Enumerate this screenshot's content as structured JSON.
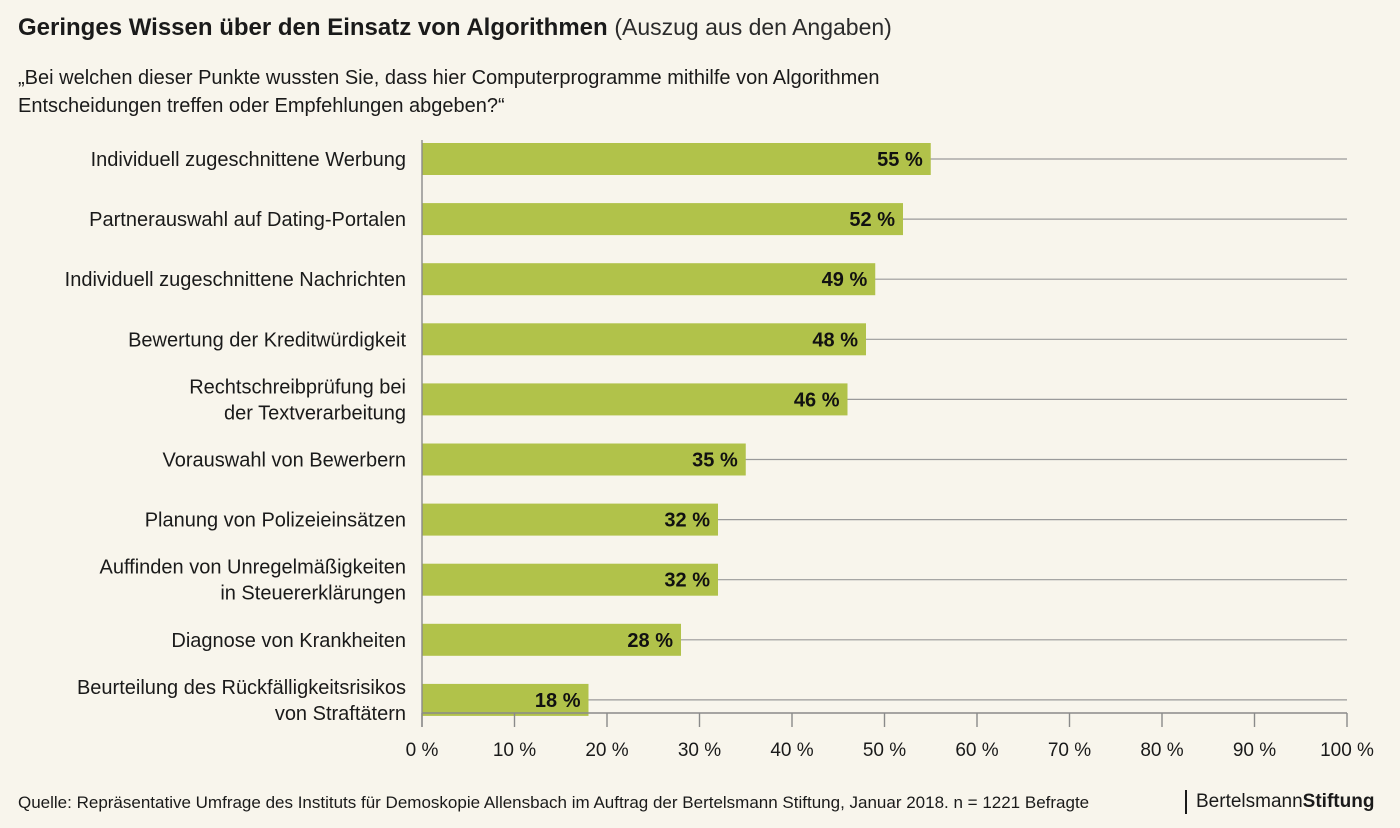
{
  "header": {
    "title": "Geringes Wissen über den Einsatz von Algorithmen",
    "subtitle": "(Auszug aus den Angaben)",
    "question": "„Bei welchen dieser Punkte wussten Sie, dass hier Computerprogramme mithilfe von Algorithmen\n Entscheidungen treffen oder Empfehlungen abgeben?“"
  },
  "chart_data": {
    "type": "bar",
    "orientation": "horizontal",
    "categories": [
      "Individuell zugeschnittene Werbung",
      "Partnerauswahl auf Dating-Portalen",
      "Individuell zugeschnittene Nachrichten",
      "Bewertung der Kreditwürdigkeit",
      "Rechtschreibprüfung bei\nder Textverarbeitung",
      "Vorauswahl von Bewerbern",
      "Planung von Polizeieinsätzen",
      "Auffinden von Unregelmäßigkeiten\nin Steuererklärungen",
      "Diagnose von Krankheiten",
      "Beurteilung des Rückfälligkeitsrisikos\nvon Straftätern"
    ],
    "values": [
      55,
      52,
      49,
      48,
      46,
      35,
      32,
      32,
      28,
      18
    ],
    "data_labels": [
      "55 %",
      "52 %",
      "49 %",
      "48 %",
      "46 %",
      "35 %",
      "32 %",
      "32 %",
      "28 %",
      "18 %"
    ],
    "xlim": [
      0,
      100
    ],
    "x_ticks": [
      0,
      10,
      20,
      30,
      40,
      50,
      60,
      70,
      80,
      90,
      100
    ],
    "x_tick_labels": [
      "0 %",
      "10 %",
      "20 %",
      "30 %",
      "40 %",
      "50 %",
      "60 %",
      "70 %",
      "80 %",
      "90 %",
      "100 %"
    ],
    "bar_color": "#b1c24a",
    "grid": "horizontal lines at each category"
  },
  "footer": {
    "source": "Quelle: Repräsentative Umfrage des Instituts für Demoskopie Allensbach im Auftrag der Bertelsmann Stiftung, Januar 2018. n = 1221 Befragte",
    "brand_part1": "Bertelsmann",
    "brand_part2": "Stiftung"
  }
}
